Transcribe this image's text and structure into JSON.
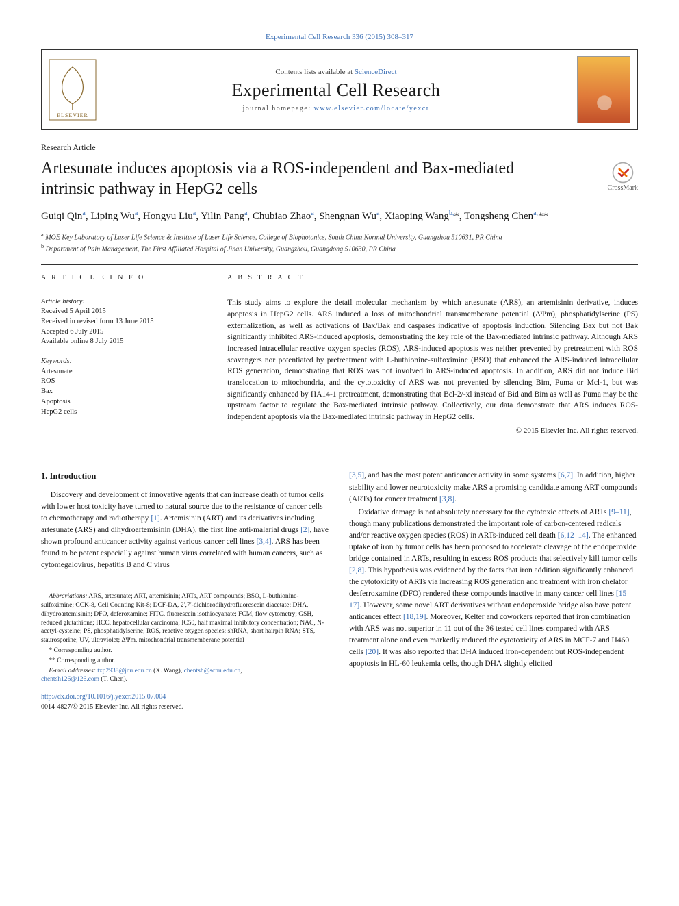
{
  "header": {
    "citation_line": "Experimental Cell Research 336 (2015) 308–317",
    "contents_prefix": "Contents lists available at ",
    "contents_link": "ScienceDirect",
    "journal_name": "Experimental Cell Research",
    "homepage_prefix": "journal homepage: ",
    "homepage_url": "www.elsevier.com/locate/yexcr",
    "crossmark_label": "CrossMark"
  },
  "article": {
    "type": "Research Article",
    "title": "Artesunate induces apoptosis via a ROS-independent and Bax-mediated intrinsic pathway in HepG2 cells",
    "authors_html": "Guiqi Qin<sup>a</sup>, Liping Wu<sup>a</sup>, Hongyu Liu<sup>a</sup>, Yilin Pang<sup>a</sup>, Chubiao Zhao<sup>a</sup>, Shengnan Wu<sup>a</sup>, Xiaoping Wang<sup>b,</sup><span class='sym'>*</span>, Tongsheng Chen<sup>a,</sup><span class='sym'>**</span>",
    "affiliations": [
      "a MOE Key Laboratory of Laser Life Science & Institute of Laser Life Science, College of Biophotonics, South China Normal University, Guangzhou 510631, PR China",
      "b Department of Pain Management, The First Affiliated Hospital of Jinan University, Guangzhou, Guangdong 510630, PR China"
    ]
  },
  "info": {
    "heading": "A R T I C L E  I N F O",
    "history_head": "Article history:",
    "history": [
      "Received 5 April 2015",
      "Received in revised form 13 June 2015",
      "Accepted 6 July 2015",
      "Available online 8 July 2015"
    ],
    "keywords_head": "Keywords:",
    "keywords": [
      "Artesunate",
      "ROS",
      "Bax",
      "Apoptosis",
      "HepG2 cells"
    ]
  },
  "abstract": {
    "heading": "A B S T R A C T",
    "text": "This study aims to explore the detail molecular mechanism by which artesunate (ARS), an artemisinin derivative, induces apoptosis in HepG2 cells. ARS induced a loss of mitochondrial transmemberane potential (ΔΨm), phosphatidylserine (PS) externalization, as well as activations of Bax/Bak and caspases indicative of apoptosis induction. Silencing Bax but not Bak significantly inhibited ARS-induced apoptosis, demonstrating the key role of the Bax-mediated intrinsic pathway. Although ARS increased intracellular reactive oxygen species (ROS), ARS-induced apoptosis was neither prevented by pretreatment with ROS scavengers nor potentiated by pretreatment with L-buthionine-sulfoximine (BSO) that enhanced the ARS-induced intracellular ROS generation, demonstrating that ROS was not involved in ARS-induced apoptosis. In addition, ARS did not induce Bid translocation to mitochondria, and the cytotoxicity of ARS was not prevented by silencing Bim, Puma or Mcl-1, but was significantly enhanced by HA14-1 pretreatment, demonstrating that Bcl-2/-xl instead of Bid and Bim as well as Puma may be the upstream factor to regulate the Bax-mediated intrinsic pathway. Collectively, our data demonstrate that ARS induces ROS-independent apoptosis via the Bax-mediated intrinsic pathway in HepG2 cells.",
    "copyright": "© 2015 Elsevier Inc. All rights reserved."
  },
  "body": {
    "intro_head": "1.  Introduction",
    "left_paragraph": "Discovery and development of innovative agents that can increase death of tumor cells with lower host toxicity have turned to natural source due to the resistance of cancer cells to chemotherapy and radiotherapy [1]. Artemisinin (ART) and its derivatives including artesunate (ARS) and dihydroartemisinin (DHA), the first line anti-malarial drugs [2], have shown profound anticancer activity against various cancer cell lines [3,4]. ARS has been found to be potent especially against human virus correlated with human cancers, such as cytomegalovirus, hepatitis B and C virus",
    "left_refs": {
      "r1": "[1]",
      "r2": "[2]",
      "r34": "[3,4]"
    },
    "right_p1": "[3,5], and has the most potent anticancer activity in some systems [6,7]. In addition, higher stability and lower neurotoxicity make ARS a promising candidate among ART compounds (ARTs) for cancer treatment [3,8].",
    "right_p2": "Oxidative damage is not absolutely necessary for the cytotoxic effects of ARTs [9–11], though many publications demonstrated the important role of carbon-centered radicals and/or reactive oxygen species (ROS) in ARTs-induced cell death [6,12–14]. The enhanced uptake of iron by tumor cells has been proposed to accelerate cleavage of the endoperoxide bridge contained in ARTs, resulting in excess ROS products that selectively kill tumor cells [2,8]. This hypothesis was evidenced by the facts that iron addition significantly enhanced the cytotoxicity of ARTs via increasing ROS generation and treatment with iron chelator desferroxamine (DFO) rendered these compounds inactive in many cancer cell lines [15–17]. However, some novel ART derivatives without endoperoxide bridge also have potent anticancer effect [18,19]. Moreover, Kelter and coworkers reported that iron combination with ARS was not superior in 11 out of the 36 tested cell lines compared with ARS treatment alone and even markedly reduced the cytotoxicity of ARS in MCF-7 and H460 cells [20]. It was also reported that DHA induced iron-dependent but ROS-independent apoptosis in HL-60 leukemia cells, though DHA slightly elicited"
  },
  "footnotes": {
    "abbrev_head": "Abbreviations:",
    "abbrev_text": " ARS, artesunate; ART, artemisinin; ARTs, ART compounds; BSO, L-buthionine-sulfoximine; CCK-8, Cell Counting Kit-8; DCF-DA, 2′,7′-dichlorodihydrofluorescein diacetate; DHA, dihydroartemisinin; DFO, deferoxamine; FITC, fluorescein isothiocyanate; FCM, flow cytometry; GSH, reduced glutathione; HCC, hepatocellular carcinoma; IC50, half maximal inhibitory concentration; NAC, N-acetyl-cysteine; PS, phosphatidylserine; ROS, reactive oxygen species; shRNA, short hairpin RNA; STS, staurosporine; UV, ultraviolet; ΔΨm, mitochondrial transmemberane potential",
    "corr1": "* Corresponding author.",
    "corr2": "** Corresponding author.",
    "emails_label": "E-mail addresses: ",
    "email1": "txp2938@jnu.edu.cn",
    "email1_who": " (X. Wang), ",
    "email2": "chentsh@scnu.edu.cn",
    "email2_sep": ", ",
    "email3": "chentsh126@126.com",
    "email3_who": " (T. Chen)."
  },
  "doi": {
    "url": "http://dx.doi.org/10.1016/j.yexcr.2015.07.004",
    "issn_line": "0014-4827/© 2015 Elsevier Inc. All rights reserved."
  },
  "colors": {
    "link": "#3b6fb5",
    "text": "#1a1a1a",
    "rule": "#333333",
    "cover_grad_top": "#f2b84a",
    "cover_grad_mid": "#e07a3a",
    "cover_grad_bot": "#c2502a"
  },
  "typography": {
    "body_pt": 11.5,
    "title_pt": 24,
    "journal_name_pt": 26,
    "footnote_pt": 9.5,
    "line_height": 1.45
  }
}
